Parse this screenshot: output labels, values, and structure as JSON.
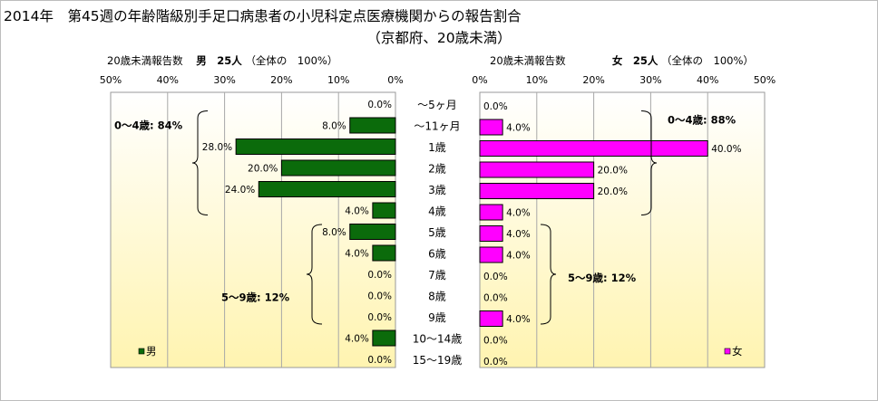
{
  "title": "2014年　第45週の年齢階級別手足口病患者の小児科定点医療機関からの報告割合",
  "subtitle": "（京都府、20歳未満）",
  "panels": {
    "male": {
      "caption_prefix": "20歳未満報告数",
      "caption_bold": "男　25人",
      "caption_suffix": "（全体の　100%）"
    },
    "female": {
      "caption_prefix": "20歳未満報告数",
      "caption_bold": "女　25人",
      "caption_suffix": "（全体の　100%）"
    }
  },
  "annotations": {
    "male_0_4": "0～4歳: 84%",
    "male_5_9": "5～9歳: 12%",
    "female_0_4": "0～4歳: 88%",
    "female_5_9": "5～9歳: 12%"
  },
  "colors": {
    "male": "#0b6b0b",
    "female": "#ff00ff",
    "background_top": "#ffffff",
    "background_bottom": "#fff4b0"
  },
  "chart_data": {
    "type": "bar",
    "orientation": "horizontal",
    "layout": "population-pyramid",
    "categories": [
      "～5ヶ月",
      "～11ヶ月",
      "1歳",
      "2歳",
      "3歳",
      "4歳",
      "5歳",
      "6歳",
      "7歳",
      "8歳",
      "9歳",
      "10～14歳",
      "15～19歳"
    ],
    "series": [
      {
        "name": "男",
        "values": [
          0.0,
          8.0,
          28.0,
          20.0,
          24.0,
          4.0,
          8.0,
          4.0,
          0.0,
          0.0,
          0.0,
          4.0,
          0.0
        ],
        "labels": [
          "0.0%",
          "8.0%",
          "28.0%",
          "20.0%",
          "24.0%",
          "4.0%",
          "8.0%",
          "4.0%",
          "0.0%",
          "0.0%",
          "0.0%",
          "4.0%",
          "0.0%"
        ]
      },
      {
        "name": "女",
        "values": [
          0.0,
          4.0,
          40.0,
          20.0,
          20.0,
          4.0,
          4.0,
          4.0,
          0.0,
          0.0,
          4.0,
          0.0,
          0.0
        ],
        "labels": [
          "0.0%",
          "4.0%",
          "40.0%",
          "20.0%",
          "20.0%",
          "4.0%",
          "4.0%",
          "4.0%",
          "0.0%",
          "0.0%",
          "4.0%",
          "0.0%",
          "0.0%"
        ]
      }
    ],
    "xlim": [
      0,
      50
    ],
    "ticks": [
      0,
      10,
      20,
      30,
      40,
      50
    ],
    "tick_labels": [
      "0%",
      "10%",
      "20%",
      "30%",
      "40%",
      "50%"
    ],
    "grid": true,
    "legend": [
      "男",
      "女"
    ],
    "legend_position": "bottom-left (male panel), bottom-right (female panel)"
  }
}
